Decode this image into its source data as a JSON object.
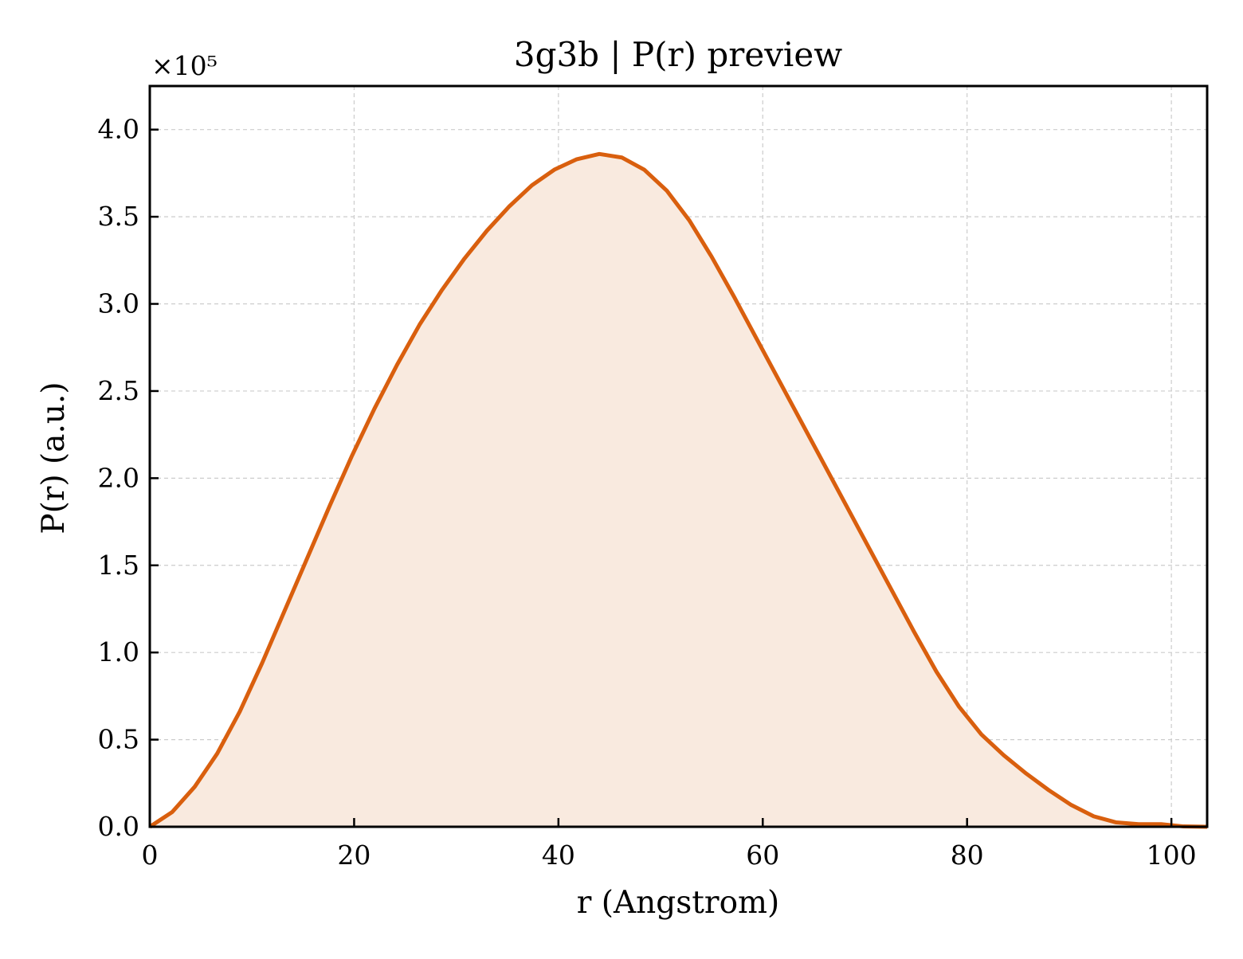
{
  "chart_data": {
    "type": "area",
    "title": "3g3b | P(r) preview",
    "xlabel": "r (Angstrom)",
    "ylabel": "P(r) (a.u.)",
    "y_offset_label": "×10⁵",
    "y_scale_factor": 100000,
    "xlim": [
      0,
      103.5
    ],
    "ylim": [
      0,
      425000
    ],
    "x_ticks": [
      0,
      20,
      40,
      60,
      80,
      100
    ],
    "x_tick_labels": [
      "0",
      "20",
      "40",
      "60",
      "80",
      "100"
    ],
    "y_ticks": [
      0,
      50000,
      100000,
      150000,
      200000,
      250000,
      300000,
      350000,
      400000
    ],
    "y_tick_labels": [
      "0.0",
      "0.5",
      "1.0",
      "1.5",
      "2.0",
      "2.5",
      "3.0",
      "3.5",
      "4.0"
    ],
    "grid": true,
    "legend": "none",
    "colors": {
      "line": "#d95f0e",
      "fill": "#f9eadf",
      "grid": "#cccccc",
      "axes": "#000000"
    },
    "series": [
      {
        "x": [
          0,
          2.2,
          4.4,
          6.6,
          8.8,
          11,
          13.2,
          15.4,
          17.6,
          19.8,
          22,
          24.2,
          26.4,
          28.6,
          30.8,
          33,
          35.2,
          37.4,
          39.6,
          41.8,
          44,
          46.2,
          48.4,
          50.6,
          52.8,
          55,
          57.2,
          59.4,
          61.6,
          63.8,
          66,
          68.2,
          70.4,
          72.6,
          74.8,
          77,
          79.2,
          81.4,
          83.6,
          85.8,
          88,
          90.2,
          92.4,
          94.6,
          96.8,
          99,
          101.2,
          103.5
        ],
        "y": [
          0,
          8500,
          23000,
          42000,
          66000,
          94000,
          124000,
          154000,
          184000,
          213000,
          240000,
          265000,
          288000,
          308000,
          326000,
          342000,
          356000,
          368000,
          377000,
          383000,
          386000,
          384000,
          377000,
          365000,
          348000,
          327000,
          304000,
          280000,
          256000,
          232000,
          208000,
          184000,
          160000,
          136000,
          112000,
          89000,
          69000,
          53000,
          41000,
          30500,
          21000,
          12500,
          6000,
          2500,
          1500,
          1500,
          200,
          0
        ]
      }
    ]
  }
}
